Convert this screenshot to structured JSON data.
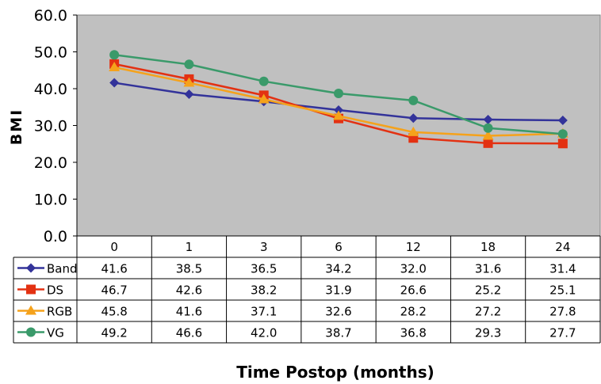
{
  "chart_data": {
    "type": "line",
    "title": "",
    "xlabel": "Time Postop (months)",
    "ylabel": "BMI",
    "categories": [
      "0",
      "1",
      "3",
      "6",
      "12",
      "18",
      "24"
    ],
    "ylim": [
      0,
      60
    ],
    "y_ticks": [
      "0.0",
      "10.0",
      "20.0",
      "30.0",
      "40.0",
      "50.0",
      "60.0"
    ],
    "grid": false,
    "legend": "data-table",
    "series": [
      {
        "name": "Band",
        "color": "#33339a",
        "marker": "diamond",
        "values": [
          41.6,
          38.5,
          36.5,
          34.2,
          32.0,
          31.6,
          31.4
        ],
        "labels": [
          "41.6",
          "38.5",
          "36.5",
          "34.2",
          "32.0",
          "31.6",
          "31.4"
        ]
      },
      {
        "name": "DS",
        "color": "#e33112",
        "marker": "square",
        "values": [
          46.7,
          42.6,
          38.2,
          31.9,
          26.6,
          25.2,
          25.1
        ],
        "labels": [
          "46.7",
          "42.6",
          "38.2",
          "31.9",
          "26.6",
          "25.2",
          "25.1"
        ]
      },
      {
        "name": "RGB",
        "color": "#f5a21b",
        "marker": "triangle",
        "values": [
          45.8,
          41.6,
          37.1,
          32.6,
          28.2,
          27.2,
          27.8
        ],
        "labels": [
          "45.8",
          "41.6",
          "37.1",
          "32.6",
          "28.2",
          "27.2",
          "27.8"
        ]
      },
      {
        "name": "VG",
        "color": "#3a9a6a",
        "marker": "circle",
        "values": [
          49.2,
          46.6,
          42.0,
          38.7,
          36.8,
          29.3,
          27.7
        ],
        "labels": [
          "49.2",
          "46.6",
          "42.0",
          "38.7",
          "36.8",
          "29.3",
          "27.7"
        ]
      }
    ],
    "plot_background": "#c0c0c0"
  }
}
